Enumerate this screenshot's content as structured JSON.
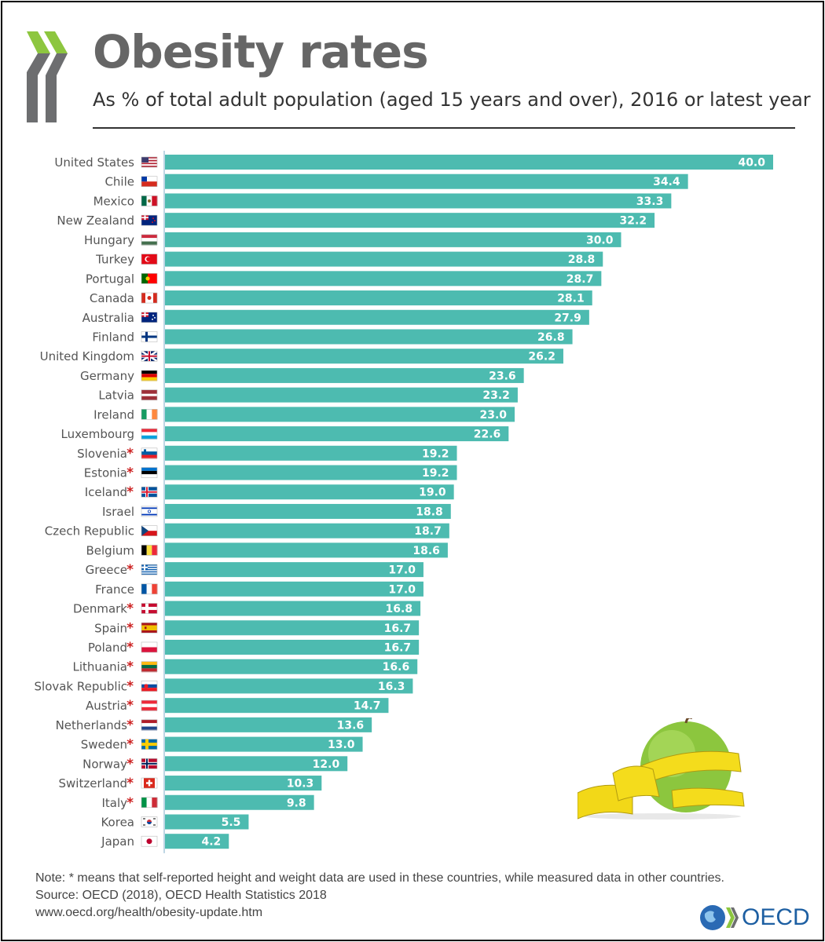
{
  "header": {
    "title": "Obesity rates",
    "subtitle": "As % of total adult population (aged 15 years and over), 2016 or latest year"
  },
  "colors": {
    "bar": "#4dbbb0",
    "bar_label": "#ffffff",
    "asterisk": "#cc1f1f",
    "axis_line": "#a8c8dc",
    "logo_green": "#8dc63f",
    "oecd_blue": "#1d5fa2"
  },
  "chart_data": {
    "type": "bar",
    "orientation": "horizontal",
    "categories": [
      "United States",
      "Chile",
      "Mexico",
      "New Zealand",
      "Hungary",
      "Turkey",
      "Portugal",
      "Canada",
      "Australia",
      "Finland",
      "United Kingdom",
      "Germany",
      "Latvia",
      "Ireland",
      "Luxembourg",
      "Slovenia",
      "Estonia",
      "Iceland",
      "Israel",
      "Czech Republic",
      "Belgium",
      "Greece",
      "France",
      "Denmark",
      "Spain",
      "Poland",
      "Lithuania",
      "Slovak Republic",
      "Austria",
      "Netherlands",
      "Sweden",
      "Norway",
      "Switzerland",
      "Italy",
      "Korea",
      "Japan"
    ],
    "values": [
      40.0,
      34.4,
      33.3,
      32.2,
      30.0,
      28.8,
      28.7,
      28.1,
      27.9,
      26.8,
      26.2,
      23.6,
      23.2,
      23.0,
      22.6,
      19.2,
      19.2,
      19.0,
      18.8,
      18.7,
      18.6,
      17.0,
      17.0,
      16.8,
      16.7,
      16.7,
      16.6,
      16.3,
      14.7,
      13.6,
      13.0,
      12.0,
      10.3,
      9.8,
      5.5,
      4.2
    ],
    "value_labels": [
      "40.0",
      "34.4",
      "33.3",
      "32.2",
      "30.0",
      "28.8",
      "28.7",
      "28.1",
      "27.9",
      "26.8",
      "26.2",
      "23.6",
      "23.2",
      "23.0",
      "22.6",
      "19.2",
      "19.2",
      "19.0",
      "18.8",
      "18.7",
      "18.6",
      "17.0",
      "17.0",
      "16.8",
      "16.7",
      "16.7",
      "16.6",
      "16.3",
      "14.7",
      "13.6",
      "13.0",
      "12.0",
      "10.3",
      "9.8",
      "5.5",
      "4.2"
    ],
    "self_reported": [
      false,
      false,
      false,
      false,
      false,
      false,
      false,
      false,
      false,
      false,
      false,
      false,
      false,
      false,
      false,
      true,
      true,
      true,
      false,
      false,
      false,
      true,
      false,
      true,
      true,
      true,
      true,
      true,
      true,
      true,
      true,
      true,
      true,
      true,
      false,
      false
    ],
    "flag_icons": [
      "us-flag-icon",
      "chile-flag-icon",
      "mexico-flag-icon",
      "new-zealand-flag-icon",
      "hungary-flag-icon",
      "turkey-flag-icon",
      "portugal-flag-icon",
      "canada-flag-icon",
      "australia-flag-icon",
      "finland-flag-icon",
      "uk-flag-icon",
      "germany-flag-icon",
      "latvia-flag-icon",
      "ireland-flag-icon",
      "luxembourg-flag-icon",
      "slovenia-flag-icon",
      "estonia-flag-icon",
      "iceland-flag-icon",
      "israel-flag-icon",
      "czech-flag-icon",
      "belgium-flag-icon",
      "greece-flag-icon",
      "france-flag-icon",
      "denmark-flag-icon",
      "spain-flag-icon",
      "poland-flag-icon",
      "lithuania-flag-icon",
      "slovakia-flag-icon",
      "austria-flag-icon",
      "netherlands-flag-icon",
      "sweden-flag-icon",
      "norway-flag-icon",
      "switzerland-flag-icon",
      "italy-flag-icon",
      "korea-flag-icon",
      "japan-flag-icon"
    ],
    "asterisk": "*",
    "xlim": [
      0,
      40
    ],
    "grid": false,
    "legend": "none"
  },
  "footer": {
    "note": "Note: * means that self-reported height and weight data are used in these countries, while measured data in other countries.",
    "source": "Source: OECD (2018), OECD Health Statistics 2018",
    "url": "www.oecd.org/health/obesity-update.htm",
    "logo_text": "OECD"
  }
}
